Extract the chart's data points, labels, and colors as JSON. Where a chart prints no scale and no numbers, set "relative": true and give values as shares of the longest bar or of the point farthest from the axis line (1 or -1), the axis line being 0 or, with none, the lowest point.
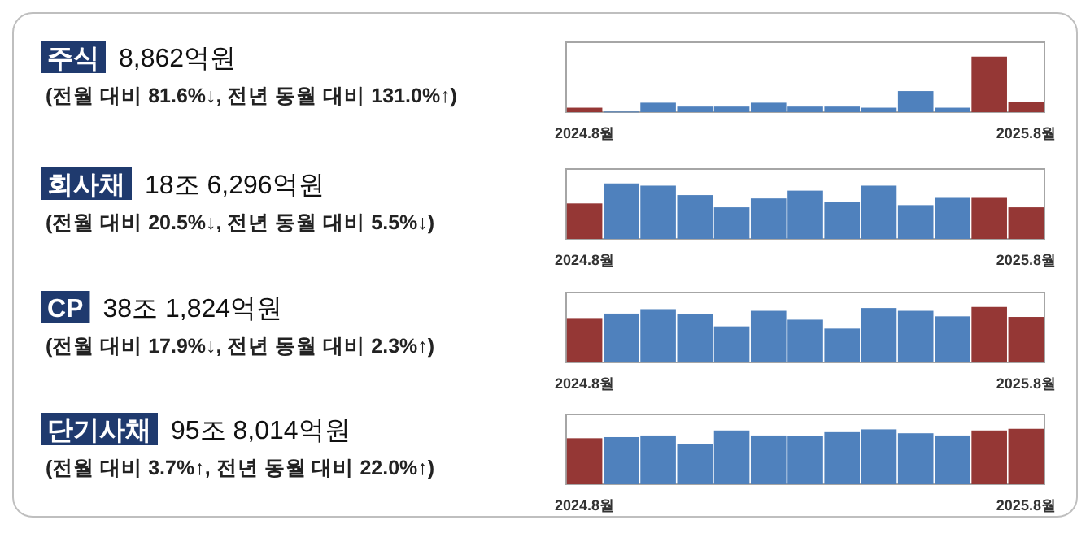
{
  "chart_data": [
    {
      "type": "bar",
      "annotations": [
        "주식",
        "8,862억원",
        "(전월 대비 81.6%↓, 전년 동월 대비 131.0%↑)"
      ],
      "relative": true,
      "categories": [
        "2024.8월",
        null,
        null,
        null,
        null,
        null,
        null,
        null,
        null,
        null,
        null,
        null,
        "2025.8월"
      ],
      "values": [
        0.08,
        0.01,
        0.17,
        0.1,
        0.1,
        0.17,
        0.1,
        0.1,
        0.08,
        0.38,
        0.08,
        1,
        0.18
      ],
      "colors": [
        "#953735",
        "#4f81bd",
        "#4f81bd",
        "#4f81bd",
        "#4f81bd",
        "#4f81bd",
        "#4f81bd",
        "#4f81bd",
        "#4f81bd",
        "#4f81bd",
        "#4f81bd",
        "#953735",
        "#953735"
      ]
    },
    {
      "type": "bar",
      "annotations": [
        "회사채",
        "18조 6,296억원",
        "(전월 대비 20.5%↓, 전년 동월 대비 5.5%↓)"
      ],
      "relative": true,
      "categories": [
        "2024.8월",
        null,
        null,
        null,
        null,
        null,
        null,
        null,
        null,
        null,
        null,
        null,
        "2025.8월"
      ],
      "values": [
        0.64,
        1,
        0.96,
        0.79,
        0.57,
        0.73,
        0.87,
        0.67,
        0.96,
        0.61,
        0.74,
        0.74,
        0.57
      ],
      "colors": [
        "#953735",
        "#4f81bd",
        "#4f81bd",
        "#4f81bd",
        "#4f81bd",
        "#4f81bd",
        "#4f81bd",
        "#4f81bd",
        "#4f81bd",
        "#4f81bd",
        "#4f81bd",
        "#953735",
        "#953735"
      ]
    },
    {
      "type": "bar",
      "annotations": [
        "CP",
        "38조 1,824억원",
        "(전월 대비 17.9%↓, 전년 동월 대비 2.3%↑)"
      ],
      "relative": true,
      "categories": [
        "2024.8월",
        null,
        null,
        null,
        null,
        null,
        null,
        null,
        null,
        null,
        null,
        null,
        "2025.8월"
      ],
      "values": [
        0.8,
        0.88,
        0.96,
        0.87,
        0.65,
        0.93,
        0.77,
        0.61,
        0.98,
        0.93,
        0.83,
        1,
        0.82
      ],
      "colors": [
        "#953735",
        "#4f81bd",
        "#4f81bd",
        "#4f81bd",
        "#4f81bd",
        "#4f81bd",
        "#4f81bd",
        "#4f81bd",
        "#4f81bd",
        "#4f81bd",
        "#4f81bd",
        "#953735",
        "#953735"
      ]
    },
    {
      "type": "bar",
      "annotations": [
        "단기사채",
        "95조 8,014억원",
        "(전월 대비 3.7%↑, 전년 동월 대비 22.0%↑)"
      ],
      "relative": true,
      "categories": [
        "2024.8월",
        null,
        null,
        null,
        null,
        null,
        null,
        null,
        null,
        null,
        null,
        null,
        "2025.8월"
      ],
      "values": [
        0.83,
        0.85,
        0.88,
        0.73,
        0.97,
        0.88,
        0.87,
        0.94,
        0.99,
        0.92,
        0.88,
        0.97,
        1
      ],
      "colors": [
        "#953735",
        "#4f81bd",
        "#4f81bd",
        "#4f81bd",
        "#4f81bd",
        "#4f81bd",
        "#4f81bd",
        "#4f81bd",
        "#4f81bd",
        "#4f81bd",
        "#4f81bd",
        "#953735",
        "#953735"
      ]
    }
  ]
}
